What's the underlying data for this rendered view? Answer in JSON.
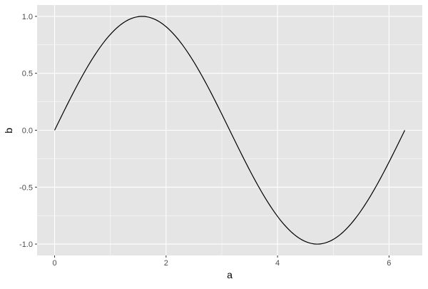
{
  "chart_data": {
    "type": "line",
    "title": "",
    "xlabel": "a",
    "ylabel": "b",
    "xlim": [
      -0.314,
      6.597
    ],
    "ylim": [
      -1.1,
      1.1
    ],
    "x_ticks": [
      0,
      2,
      4,
      6
    ],
    "x_tick_labels": [
      "0",
      "2",
      "4",
      "6"
    ],
    "y_ticks": [
      1.0,
      0.5,
      0.0,
      -0.5,
      -1.0
    ],
    "y_tick_labels": [
      "1.0",
      "0.5",
      "0.0",
      "-0.5",
      "-1.0"
    ],
    "grid": true,
    "series": [
      {
        "function": "sin(a)",
        "x_range": [
          0,
          6.2832
        ],
        "color": "#000000"
      }
    ],
    "panel_background": "#E5E5E5",
    "grid_color": "#FFFFFF"
  }
}
